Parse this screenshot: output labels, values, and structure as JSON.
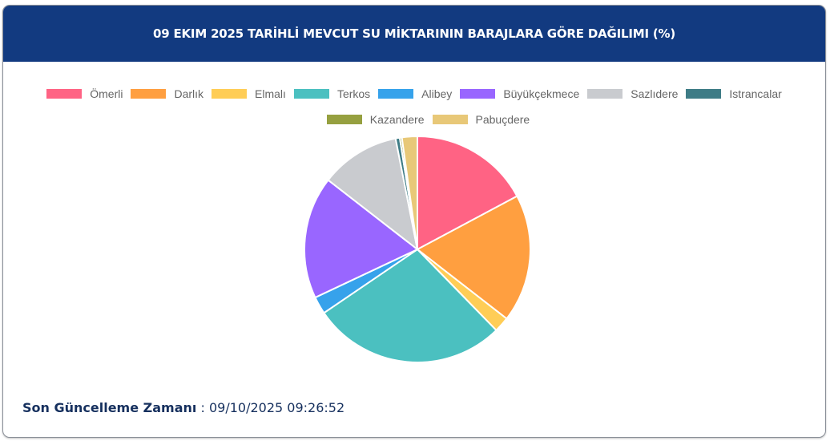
{
  "header": {
    "title": "09 EKIM 2025 TARİHLİ MEVCUT SU MİKTARININ BARAJLARA GÖRE DAĞILIMI (%)"
  },
  "legend": [
    {
      "label": "Ömerli",
      "color": "#ff6384"
    },
    {
      "label": "Darlık",
      "color": "#ff9f40"
    },
    {
      "label": "Elmalı",
      "color": "#ffcd56"
    },
    {
      "label": "Terkos",
      "color": "#4bc0c0"
    },
    {
      "label": "Alibey",
      "color": "#36a2eb"
    },
    {
      "label": "Büyükçekmece",
      "color": "#9966ff"
    },
    {
      "label": "Sazlıdere",
      "color": "#c9cbcf"
    },
    {
      "label": "Istrancalar",
      "color": "#3e7c86"
    },
    {
      "label": "Kazandere",
      "color": "#96a040"
    },
    {
      "label": "Pabuçdere",
      "color": "#e8c878"
    }
  ],
  "chart_data": {
    "type": "pie",
    "title": "09 EKIM 2025 TARİHLİ MEVCUT SU MİKTARININ BARAJLARA GÖRE DAĞILIMI (%)",
    "categories": [
      "Ömerli",
      "Darlık",
      "Elmalı",
      "Terkos",
      "Alibey",
      "Büyükçekmece",
      "Sazlıdere",
      "Istrancalar",
      "Kazandere",
      "Pabuçdere"
    ],
    "values": [
      17.2,
      18.3,
      2.2,
      27.8,
      2.5,
      17.5,
      11.4,
      0.6,
      0.3,
      2.2
    ],
    "colors": [
      "#ff6384",
      "#ff9f40",
      "#ffcd56",
      "#4bc0c0",
      "#36a2eb",
      "#9966ff",
      "#c9cbcf",
      "#3e7c86",
      "#96a040",
      "#e8c878"
    ],
    "legend_position": "top"
  },
  "footer": {
    "label": "Son Güncelleme Zamanı",
    "separator": " : ",
    "value": "09/10/2025 09:26:52"
  }
}
